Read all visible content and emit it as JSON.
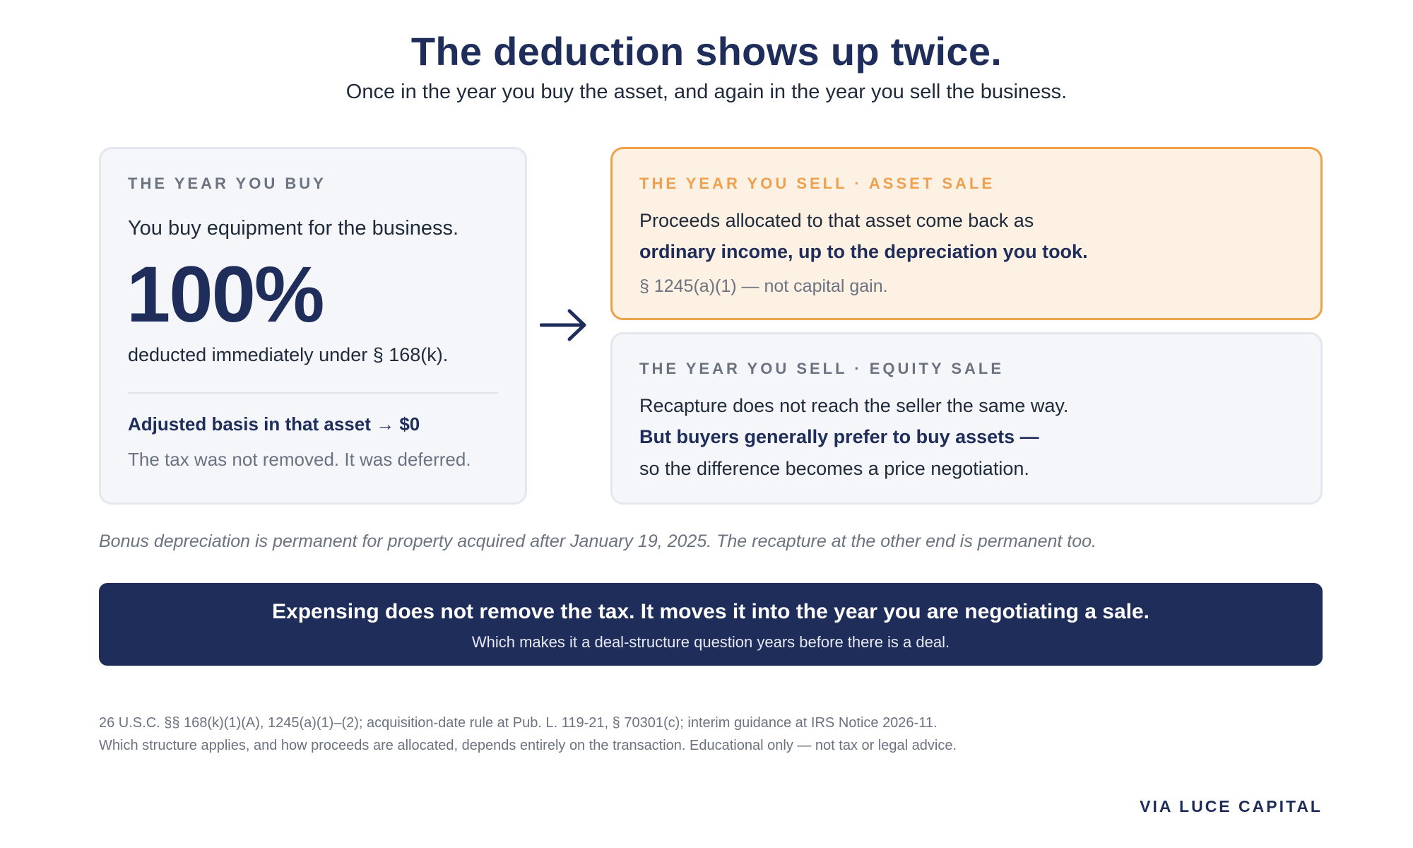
{
  "header": {
    "title": "The deduction shows up twice.",
    "subtitle": "Once in the year you buy the asset, and again in the year you sell the business."
  },
  "buy_card": {
    "eyebrow": "THE YEAR YOU BUY",
    "lead": "You buy equipment for the business.",
    "big_figure": "100%",
    "under": "deducted immediately under § 168(k).",
    "basis": "Adjusted basis in that asset → $0",
    "note": "The tax was not removed. It was deferred."
  },
  "arrow": {
    "icon": "arrow-right-icon"
  },
  "asset_card": {
    "eyebrow": "THE YEAR YOU SELL · ASSET SALE",
    "line1": "Proceeds allocated to that asset come back as",
    "line2": "ordinary income, up to the depreciation you took.",
    "line3": "§ 1245(a)(1) — not capital gain."
  },
  "equity_card": {
    "eyebrow": "THE YEAR YOU SELL · EQUITY SALE",
    "line1": "Recapture does not reach the seller the same way.",
    "line2": "But buyers generally prefer to buy assets —",
    "line3": "so the difference becomes a price negotiation."
  },
  "note": "Bonus depreciation is permanent for property acquired after January 19, 2025. The recapture at the other end is permanent too.",
  "banner": {
    "main": "Expensing does not remove the tax. It moves it into the year you are negotiating a sale.",
    "sub": "Which makes it a deal-structure question years before there is a deal."
  },
  "citations": {
    "line1": "26 U.S.C. §§ 168(k)(1)(A), 1245(a)(1)–(2); acquisition-date rule at Pub. L. 119-21, § 70301(c); interim guidance at IRS Notice 2026-11.",
    "line2": "Which structure applies, and how proceeds are allocated, depends entirely on the transaction. Educational only — not tax or legal advice."
  },
  "brand": "VIA LUCE CAPITAL",
  "colors": {
    "navy": "#1f2d5a",
    "orange": "#eea04e",
    "card_bg": "#f4f6fa",
    "asset_bg": "#fdf1e4"
  }
}
